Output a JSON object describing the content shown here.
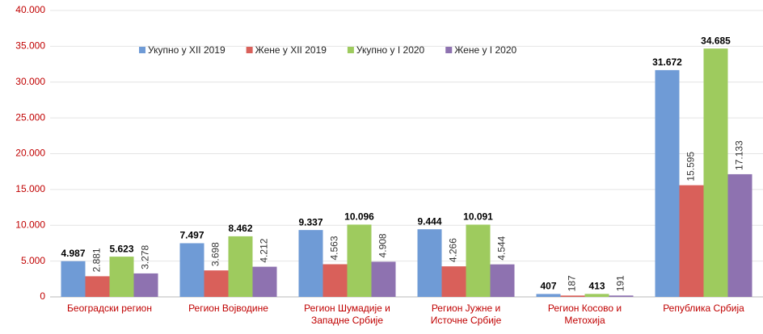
{
  "chart_data": {
    "type": "bar",
    "categories": [
      "Београдски регион",
      "Регион Војводине",
      "Регион Шумадије и\nЗападне Србије",
      "Регион Јужне и\nИсточне Србије",
      "Регион Косово и\nМетохија",
      "Република Србија"
    ],
    "series": [
      {
        "name": "Укупно у XII 2019",
        "color": "#6f9bd6",
        "values": [
          4987,
          7497,
          9337,
          9444,
          407,
          31672
        ],
        "value_labels": [
          "4.987",
          "7.497",
          "9.337",
          "9.444",
          "407",
          "31.672"
        ]
      },
      {
        "name": "Жене у XII 2019",
        "color": "#d9605a",
        "values": [
          2881,
          3698,
          4563,
          4266,
          187,
          15595
        ],
        "value_labels": [
          "2.881",
          "3.698",
          "4.563",
          "4.266",
          "187",
          "15.595"
        ]
      },
      {
        "name": "Укупно у I 2020",
        "color": "#9ecb5e",
        "values": [
          5623,
          8462,
          10096,
          10091,
          413,
          34685
        ],
        "value_labels": [
          "5.623",
          "8.462",
          "10.096",
          "10.091",
          "413",
          "34.685"
        ]
      },
      {
        "name": "Жене у I 2020",
        "color": "#8e72b0",
        "values": [
          3278,
          4212,
          4908,
          4544,
          191,
          17133
        ],
        "value_labels": [
          "3.278",
          "4.212",
          "4.908",
          "4.544",
          "191",
          "17.133"
        ]
      }
    ],
    "ylim": [
      0,
      40000
    ],
    "yticks": [
      0,
      {
        "value": 5000,
        "label": "5.000"
      },
      {
        "value": 10000,
        "label": "10.000"
      },
      {
        "value": 15000,
        "label": "15.000"
      },
      {
        "value": 20000,
        "label": "20.000"
      },
      {
        "value": 25000,
        "label": "25.000"
      },
      {
        "value": 30000,
        "label": "30.000"
      },
      {
        "value": 35000,
        "label": "35.000"
      },
      {
        "value": 40000,
        "label": "40.000"
      }
    ],
    "grid": true
  }
}
